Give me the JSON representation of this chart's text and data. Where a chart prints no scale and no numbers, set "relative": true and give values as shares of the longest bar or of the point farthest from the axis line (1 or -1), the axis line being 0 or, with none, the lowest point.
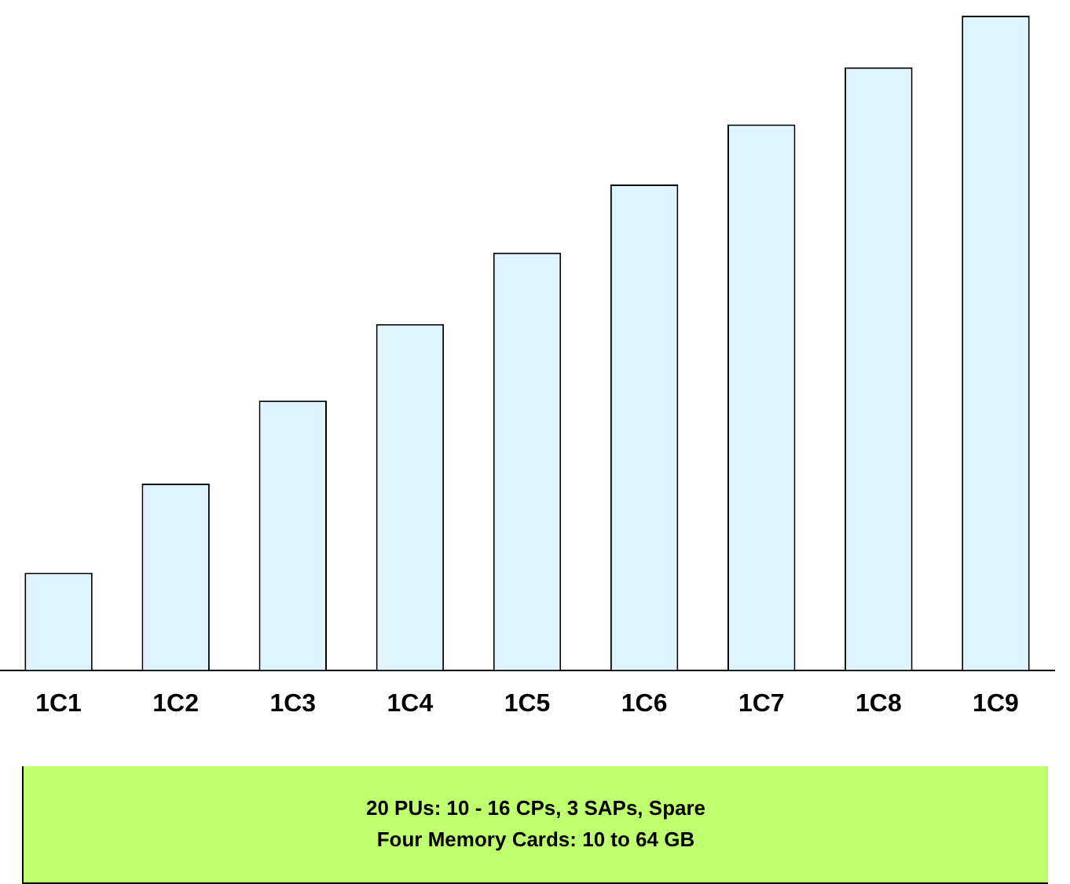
{
  "chart_data": {
    "type": "bar",
    "relative": true,
    "categories": [
      "1C1",
      "1C2",
      "1C3",
      "1C4",
      "1C5",
      "1C6",
      "1C7",
      "1C8",
      "1C9"
    ],
    "values": [
      0.149,
      0.285,
      0.412,
      0.529,
      0.638,
      0.742,
      0.834,
      0.921,
      1
    ],
    "color": "#e0f4ff",
    "grid": false,
    "legend": false,
    "annotations": [
      "20 PUs: 10 - 16 CPs, 3 SAPs, Spare",
      "Four Memory Cards: 10 to 64 GB"
    ]
  }
}
